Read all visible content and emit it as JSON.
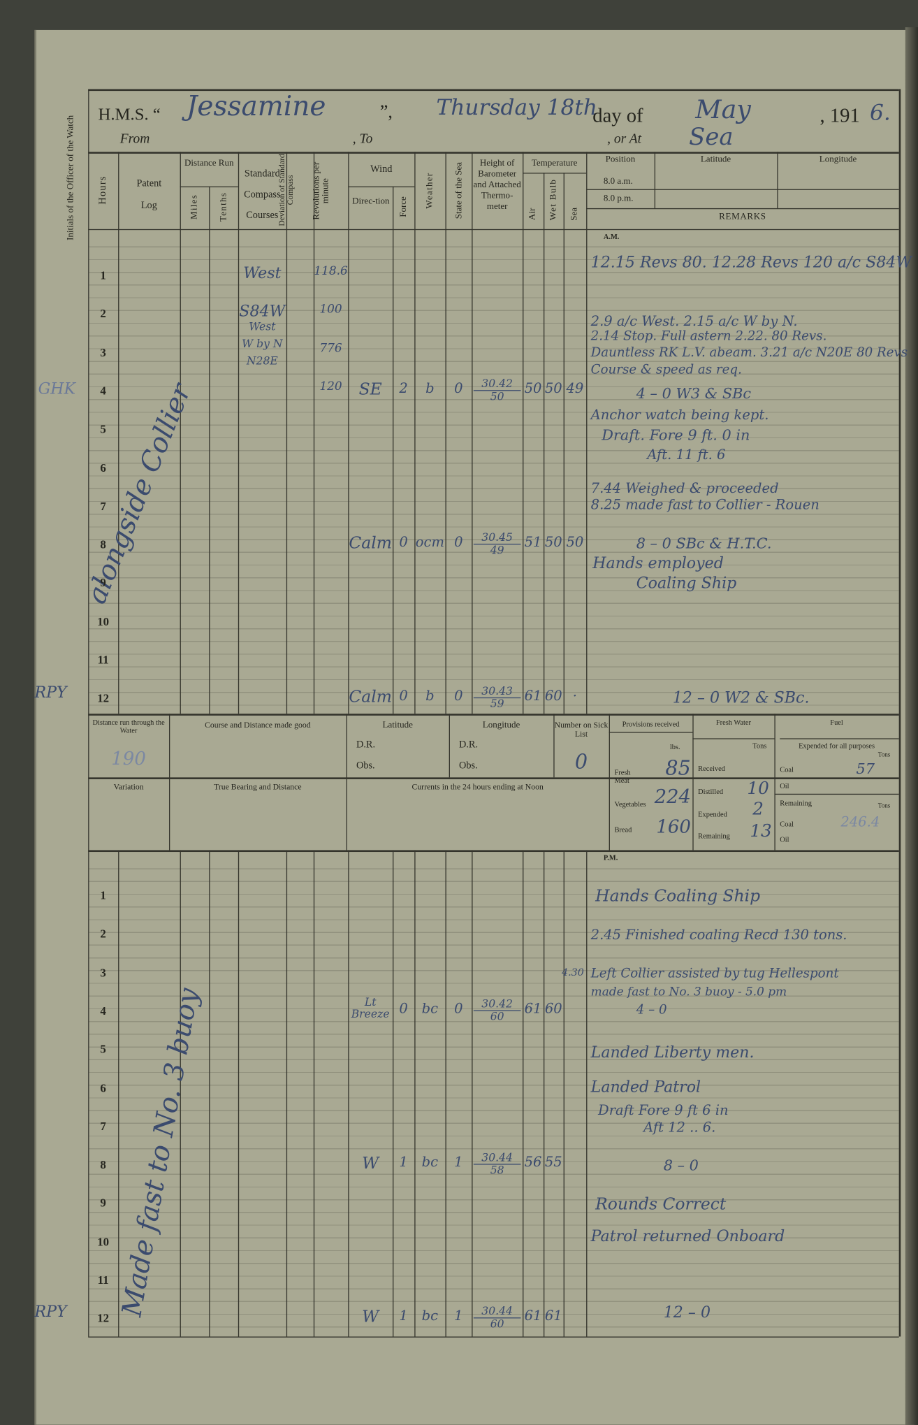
{
  "header": {
    "hms_label": "H.M.S. “",
    "ship_name": "Jessamine",
    "quote_close": "”,",
    "weekday": "Thursday 18th",
    "day_of_label": "day of",
    "month": "May",
    "year_prefix": ", 191",
    "year_digit": "6.",
    "from_label": "From",
    "to_label": ", To",
    "or_at_label": ", or At",
    "at_value": "Sea"
  },
  "margin": {
    "label": "Initials of the Officer of the Watch",
    "initials": [
      "GHK",
      "RPY",
      "RPY"
    ]
  },
  "columns": {
    "hours": "Hours",
    "patent_log": [
      "Patent",
      "Log"
    ],
    "distance_run": "Distance Run",
    "miles": "Miles",
    "tenths": "Tenths",
    "standard": "Standard",
    "compass": "Compass",
    "courses": "Courses",
    "deviation": "Deviation of Standard Compass",
    "revolutions": "Revolutions per minute",
    "wind": "Wind",
    "direction": "Direc-tion",
    "force": "Force",
    "weather": "Weather",
    "state_sea": "State of the Sea",
    "barometer": "Height of Barometer and Attached Thermo-meter",
    "temperature": "Temperature",
    "air": "Air",
    "wet_bulb": "Wet Bulb",
    "sea": "Sea",
    "position": "Position",
    "am_time": "8.0 a.m.",
    "pm_time": "8.0 p.m.",
    "latitude": "Latitude",
    "longitude": "Longitude",
    "remarks": "REMARKS"
  },
  "am": {
    "label": "A.M.",
    "hours": [
      "1",
      "2",
      "3",
      "4",
      "5",
      "6",
      "7",
      "8",
      "9",
      "10",
      "11",
      "12"
    ],
    "patent_log_note": "alongside Collier",
    "entries": [
      {
        "hour": 1,
        "course": [
          "West"
        ],
        "revs": "118.6"
      },
      {
        "hour": 2,
        "course": [
          "S84W",
          "West",
          "W by N",
          "N28E"
        ],
        "revs": "100"
      },
      {
        "hour": 3,
        "revs": "776"
      },
      {
        "hour": 4,
        "revs": "120",
        "direction": "SE",
        "force": "2",
        "weather": "b",
        "sea_state": "0",
        "baro": "30.42",
        "therm": "50",
        "air": "50",
        "wet": "50",
        "sea_temp": "49"
      },
      {
        "hour": 8,
        "direction": "Calm",
        "force": "0",
        "weather": "ocm",
        "sea_state": "0",
        "baro": "30.45",
        "therm": "49",
        "air": "51",
        "wet": "50",
        "sea_temp": "50"
      },
      {
        "hour": 12,
        "direction": "Calm",
        "force": "0",
        "weather": "b",
        "sea_state": "0",
        "baro": "30.43",
        "therm": "59",
        "air": "61",
        "wet": "60",
        "sea_temp": "·"
      }
    ],
    "remarks": [
      "12.15 Revs 80. 12.28 Revs 120 a/c S84W",
      "2.9 a/c West.  2.15 a/c W by N.",
      "2.14 Stop. Full astern   2.22. 80 Revs.",
      "Dauntless RK L.V. abeam. 3.21 a/c N20E 80 Revs",
      "Course & speed as req.",
      "4 – 0     W3 & SBc",
      "Anchor watch being kept.",
      "Draft.  Fore  9 ft.  0 in",
      "Aft.  11 ft.  6",
      "7.44 Weighed & proceeded",
      "8.25 made fast to Collier - Rouen",
      "8 – 0    SBc & H.T.C.",
      "Hands employed",
      "Coaling Ship",
      "12 – 0    W2 & SBc."
    ]
  },
  "summary": {
    "distance_label": "Distance run through the Water",
    "distance_value": "190",
    "course_label": "Course and Distance made good",
    "latitude_label": "Latitude",
    "longitude_label": "Longitude",
    "dr_label": "D.R.",
    "obs_label": "Obs.",
    "sick_label": "Number on Sick List",
    "sick_value": "0",
    "variation_label": "Variation",
    "true_bearing_label": "True Bearing and Distance",
    "currents_label": "Currents in the 24 hours ending at Noon",
    "provisions": {
      "label": "Provisions received",
      "unit": "lbs.",
      "fresh_meat_label": "Fresh Meat",
      "fresh_meat": "85",
      "vegetables_label": "Vegetables",
      "vegetables": "224",
      "bread_label": "Bread",
      "bread": "160"
    },
    "fresh_water": {
      "label": "Fresh Water",
      "unit": "Tons",
      "received_label": "Received",
      "distilled_label": "Distilled",
      "distilled": "10",
      "expended_label": "Expended",
      "expended": "2",
      "remaining_label": "Remaining",
      "remaining": "13"
    },
    "fuel": {
      "label": "Fuel",
      "expended_label": "Expended for all purposes",
      "unit": "Tons",
      "coal_label": "Coal",
      "oil_label": "Oil",
      "expended_coal": "57",
      "remaining_label": "Remaining",
      "remaining_coal": "246.4"
    }
  },
  "pm": {
    "label": "P.M.",
    "hours": [
      "1",
      "2",
      "3",
      "4",
      "5",
      "6",
      "7",
      "8",
      "9",
      "10",
      "11",
      "12"
    ],
    "patent_log_note": "Made fast to No. 3 buoy",
    "entries": [
      {
        "hour": 4,
        "direction": "Lt Breeze",
        "force": "0",
        "weather": "bc",
        "sea_state": "0",
        "baro": "30.42",
        "therm": "60",
        "air": "61",
        "wet": "60"
      },
      {
        "hour": 8,
        "direction": "W",
        "force": "1",
        "weather": "bc",
        "sea_state": "1",
        "baro": "30.44",
        "therm": "58",
        "air": "56",
        "wet": "55"
      },
      {
        "hour": 12,
        "direction": "W",
        "force": "1",
        "weather": "bc",
        "sea_state": "1",
        "baro": "30.44",
        "therm": "60",
        "air": "61",
        "wet": "61"
      }
    ],
    "margin_time": "4.30",
    "remarks": [
      "Hands Coaling Ship",
      "2.45 Finished coaling Recd 130 tons.",
      "Left Collier assisted by tug Hellespont",
      "made fast to No. 3 buoy - 5.0 pm",
      "4 – 0",
      "Landed Liberty men.",
      "Landed Patrol",
      "Draft  Fore  9 ft  6 in",
      "Aft  12 ..  6.",
      "8 – 0",
      "Rounds Correct",
      "Patrol returned Onboard",
      "12 – 0"
    ]
  }
}
